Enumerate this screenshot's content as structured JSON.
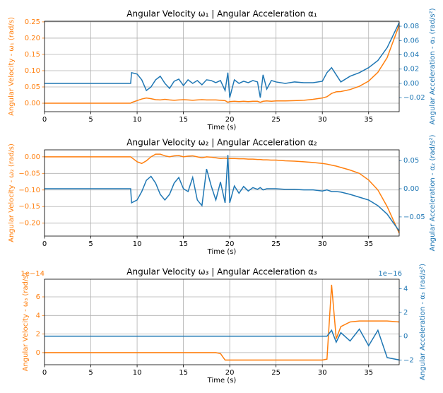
{
  "chart_data": [
    {
      "type": "line",
      "title": "Angular Velocity ω₁ | Angular Acceleration α₁",
      "xlabel": "Time (s)",
      "ylabel": "Angular Velocity - ω₁ (rad/s)",
      "y2label": "Angular Acceleration - α₁ (rad/s²)",
      "xlim": [
        0,
        38.3
      ],
      "xticks": [
        0,
        5,
        10,
        15,
        20,
        25,
        30,
        35
      ],
      "ylim": [
        -0.026,
        0.252
      ],
      "yticks": [
        {
          "value": 0,
          "label": "0.00"
        },
        {
          "value": 0.05,
          "label": "0.05"
        },
        {
          "value": 0.1,
          "label": "0.10"
        },
        {
          "value": 0.15,
          "label": "0.15"
        },
        {
          "value": 0.2,
          "label": "0.20"
        },
        {
          "value": 0.25,
          "label": "0.25"
        }
      ],
      "y2lim": [
        -0.0396,
        0.087
      ],
      "y2ticks": [
        {
          "value": -0.02,
          "label": "−0.02"
        },
        {
          "value": 0,
          "label": "0.00"
        },
        {
          "value": 0.02,
          "label": "0.02"
        },
        {
          "value": 0.04,
          "label": "0.04"
        },
        {
          "value": 0.06,
          "label": "0.06"
        },
        {
          "value": 0.08,
          "label": "0.08"
        }
      ],
      "grid": true,
      "x": [
        0,
        9.3,
        9.4,
        10,
        10.5,
        11,
        11.5,
        12,
        12.5,
        13,
        13.5,
        14,
        14.5,
        15,
        15.5,
        16,
        16.5,
        17,
        17.5,
        18,
        18.5,
        19,
        19.5,
        19.8,
        20,
        20.5,
        21,
        21.5,
        22,
        22.5,
        23,
        23.3,
        23.6,
        24,
        24.5,
        25,
        26,
        27,
        28,
        29,
        30,
        30.5,
        31,
        31.5,
        32,
        33,
        34,
        35,
        36,
        37,
        38.3
      ],
      "series": [
        {
          "color": "#ff7f0e",
          "axis": "y",
          "values": [
            0,
            0,
            0.002,
            0.008,
            0.013,
            0.016,
            0.014,
            0.011,
            0.01,
            0.012,
            0.01,
            0.009,
            0.01,
            0.011,
            0.01,
            0.009,
            0.01,
            0.011,
            0.01,
            0.01,
            0.01,
            0.009,
            0.008,
            0.003,
            0.005,
            0.006,
            0.005,
            0.006,
            0.005,
            0.006,
            0.006,
            0.003,
            0.006,
            0.007,
            0.006,
            0.007,
            0.007,
            0.008,
            0.009,
            0.012,
            0.016,
            0.02,
            0.03,
            0.035,
            0.036,
            0.042,
            0.052,
            0.068,
            0.095,
            0.14,
            0.24
          ]
        },
        {
          "color": "#1f77b4",
          "axis": "y2",
          "values": [
            0,
            0,
            0.015,
            0.013,
            0.005,
            -0.01,
            -0.005,
            0.005,
            0.01,
            0,
            -0.007,
            0.003,
            0.006,
            -0.003,
            0.005,
            0,
            0.004,
            -0.002,
            0.005,
            0.004,
            0.001,
            0.004,
            -0.01,
            0.015,
            -0.02,
            0.005,
            0,
            0.003,
            0.001,
            0.004,
            0.002,
            -0.02,
            0.012,
            -0.008,
            0.004,
            0.002,
            0,
            0.002,
            0.001,
            0.001,
            0.003,
            0.015,
            0.022,
            0.012,
            0.002,
            0.01,
            0.015,
            0.022,
            0.032,
            0.05,
            0.085
          ]
        }
      ]
    },
    {
      "type": "line",
      "title": "Angular Velocity ω₂ | Angular Acceleration α₂",
      "xlabel": "Time (s)",
      "ylabel": "Angular Velocity - ω₂ (rad/s)",
      "y2label": "Angular Acceleration - α₂ (rad/s²)",
      "xlim": [
        0,
        38.3
      ],
      "xticks": [
        0,
        5,
        10,
        15,
        20,
        25,
        30,
        35
      ],
      "ylim": [
        -0.239,
        0.021
      ],
      "yticks": [
        {
          "value": -0.2,
          "label": "−0.20"
        },
        {
          "value": -0.15,
          "label": "−0.15"
        },
        {
          "value": -0.1,
          "label": "−0.10"
        },
        {
          "value": -0.05,
          "label": "−0.05"
        },
        {
          "value": 0,
          "label": "0.00"
        }
      ],
      "y2lim": [
        -0.084,
        0.069
      ],
      "y2ticks": [
        {
          "value": -0.05,
          "label": "−0.05"
        },
        {
          "value": 0,
          "label": "0.00"
        },
        {
          "value": 0.05,
          "label": "0.05"
        }
      ],
      "grid": true,
      "x": [
        0,
        9.3,
        9.4,
        10,
        10.5,
        11,
        11.5,
        12,
        12.5,
        13,
        13.5,
        14,
        14.5,
        15,
        15.5,
        16,
        16.5,
        17,
        17.5,
        18,
        18.5,
        19,
        19.5,
        19.8,
        20,
        20.5,
        21,
        21.5,
        22,
        22.5,
        23,
        23.3,
        23.6,
        24,
        24.5,
        25,
        26,
        27,
        28,
        29,
        30,
        30.5,
        31,
        31.5,
        32,
        33,
        34,
        35,
        36,
        37,
        38.3
      ],
      "series": [
        {
          "color": "#ff7f0e",
          "axis": "y",
          "values": [
            0,
            0,
            -0.002,
            -0.015,
            -0.02,
            -0.012,
            0,
            0.008,
            0.008,
            0.003,
            0,
            0.003,
            0.004,
            0,
            0.002,
            0.003,
            0,
            -0.003,
            0,
            -0.001,
            -0.003,
            -0.005,
            -0.004,
            -0.006,
            -0.005,
            -0.005,
            -0.006,
            -0.006,
            -0.007,
            -0.007,
            -0.008,
            -0.008,
            -0.009,
            -0.009,
            -0.01,
            -0.01,
            -0.012,
            -0.013,
            -0.015,
            -0.017,
            -0.02,
            -0.022,
            -0.025,
            -0.028,
            -0.032,
            -0.04,
            -0.05,
            -0.07,
            -0.1,
            -0.15,
            -0.23
          ]
        },
        {
          "color": "#1f77b4",
          "axis": "y2",
          "values": [
            0,
            0,
            -0.025,
            -0.02,
            -0.005,
            0.015,
            0.022,
            0.01,
            -0.01,
            -0.02,
            -0.01,
            0.01,
            0.02,
            0,
            -0.005,
            0.02,
            -0.02,
            -0.03,
            0.035,
            0.005,
            -0.02,
            0.012,
            -0.025,
            0.06,
            -0.025,
            0.005,
            -0.008,
            0.004,
            -0.004,
            0.002,
            -0.001,
            0.002,
            -0.002,
            0,
            0,
            0,
            -0.001,
            -0.001,
            -0.002,
            -0.002,
            -0.004,
            -0.002,
            -0.005,
            -0.005,
            -0.006,
            -0.01,
            -0.015,
            -0.02,
            -0.03,
            -0.045,
            -0.075
          ]
        }
      ]
    },
    {
      "type": "line",
      "title": "Angular Velocity ω₃ | Angular Acceleration α₃",
      "xlabel": "Time (s)",
      "ylabel": "Angular Velocity - ω₃ (rad/s)",
      "y2label": "Angular Acceleration - α₃ (rad/s²)",
      "y_offset_label": "1e−14",
      "y2_offset_label": "1e−16",
      "xlim": [
        0,
        38.3
      ],
      "xticks": [
        0,
        5,
        10,
        15,
        20,
        25,
        30,
        35
      ],
      "ylim": [
        -1.3,
        7.9
      ],
      "yticks": [
        0,
        2,
        4,
        6
      ],
      "y2lim": [
        -2.4,
        4.8
      ],
      "y2ticks": [
        {
          "value": -2,
          "label": "−2"
        },
        0,
        2,
        4
      ],
      "grid": true,
      "x": [
        0,
        9.3,
        9.4,
        10,
        10.5,
        11,
        11.5,
        12,
        12.5,
        13,
        13.5,
        14,
        14.5,
        15,
        15.5,
        16,
        16.5,
        17,
        17.5,
        18,
        18.5,
        19,
        19.5,
        19.8,
        20,
        20.5,
        21,
        21.5,
        22,
        22.5,
        23,
        23.3,
        23.6,
        24,
        24.5,
        25,
        26,
        27,
        28,
        29,
        30,
        30.5,
        31,
        31.5,
        32,
        33,
        34,
        35,
        36,
        37,
        38.3
      ],
      "series": [
        {
          "color": "#ff7f0e",
          "axis": "y",
          "values": [
            0,
            0,
            0,
            0,
            0,
            0,
            0,
            0,
            0,
            0,
            0,
            0,
            0,
            0,
            0,
            0,
            0,
            0,
            0,
            0,
            0,
            -0.1,
            -0.8,
            -0.8,
            -0.8,
            -0.8,
            -0.8,
            -0.8,
            -0.8,
            -0.8,
            -0.8,
            -0.8,
            -0.8,
            -0.8,
            -0.8,
            -0.8,
            -0.8,
            -0.8,
            -0.8,
            -0.8,
            -0.8,
            -0.7,
            7.3,
            1.5,
            2.8,
            3.3,
            3.4,
            3.4,
            3.4,
            3.4,
            3.3
          ]
        },
        {
          "color": "#1f77b4",
          "axis": "y2",
          "values": [
            0,
            0,
            0,
            0,
            0,
            0,
            0,
            0,
            0,
            0,
            0,
            0,
            0,
            0,
            0,
            0,
            0,
            0,
            0,
            0,
            0,
            0,
            0,
            0,
            0,
            0,
            0,
            0,
            0,
            0,
            0,
            0,
            0,
            0,
            0,
            0,
            0,
            0,
            0,
            0,
            0,
            0,
            0.5,
            -0.5,
            0.3,
            -0.4,
            0.6,
            -0.8,
            0.5,
            -1.8,
            -2
          ]
        }
      ]
    }
  ]
}
